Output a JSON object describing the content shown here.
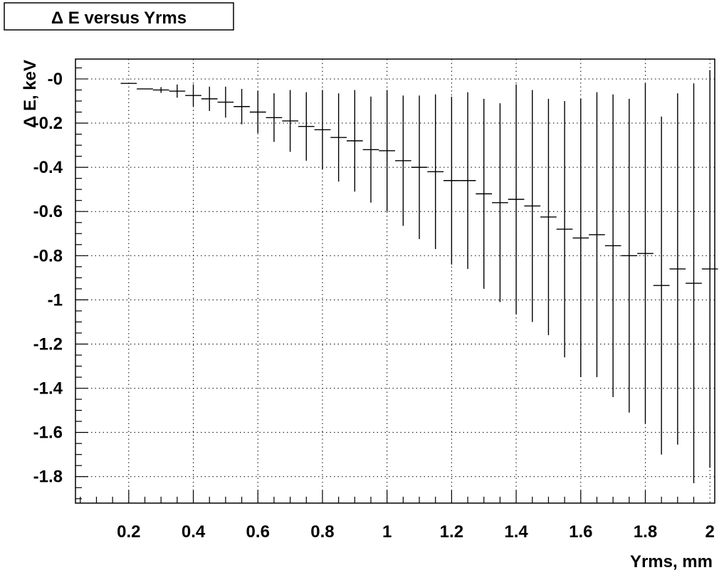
{
  "chart_data": {
    "type": "scatter",
    "title": "Δ E versus Yrms",
    "xlabel": "Yrms, mm",
    "ylabel": "Δ E, keV",
    "xlim": [
      0.035,
      2.015
    ],
    "ylim": [
      -1.92,
      0.09
    ],
    "grid": true,
    "x_ticks": [
      0.2,
      0.4,
      0.6,
      0.8,
      1.0,
      1.2,
      1.4,
      1.6,
      1.8,
      2.0
    ],
    "x_tick_labels": [
      "0.2",
      "0.4",
      "0.6",
      "0.8",
      "1",
      "1.2",
      "1.4",
      "1.6",
      "1.8",
      "2"
    ],
    "y_ticks": [
      0,
      -0.2,
      -0.4,
      -0.6,
      -0.8,
      -1.0,
      -1.2,
      -1.4,
      -1.6,
      -1.8
    ],
    "y_tick_labels": [
      "-0",
      "-0.2",
      "-0.4",
      "-0.6",
      "-0.8",
      "-1",
      "-1.2",
      "-1.4",
      "-1.6",
      "-1.8"
    ],
    "bin_width": 0.05,
    "series": [
      {
        "points": [
          {
            "x": 0.2,
            "y": -0.02,
            "yerr": 0.0
          },
          {
            "x": 0.25,
            "y": -0.045,
            "yerr": 0.0
          },
          {
            "x": 0.3,
            "y": -0.05,
            "yerr": 0.013
          },
          {
            "x": 0.35,
            "y": -0.055,
            "yerr": 0.03
          },
          {
            "x": 0.4,
            "y": -0.075,
            "yerr": 0.05
          },
          {
            "x": 0.45,
            "y": -0.09,
            "yerr": 0.055
          },
          {
            "x": 0.5,
            "y": -0.105,
            "yerr": 0.07
          },
          {
            "x": 0.55,
            "y": -0.125,
            "yerr": 0.08
          },
          {
            "x": 0.6,
            "y": -0.15,
            "yerr": 0.095
          },
          {
            "x": 0.65,
            "y": -0.175,
            "yerr": 0.11
          },
          {
            "x": 0.7,
            "y": -0.19,
            "yerr": 0.14
          },
          {
            "x": 0.75,
            "y": -0.215,
            "yerr": 0.155
          },
          {
            "x": 0.8,
            "y": -0.23,
            "yerr": 0.18
          },
          {
            "x": 0.85,
            "y": -0.265,
            "yerr": 0.2
          },
          {
            "x": 0.9,
            "y": -0.28,
            "yerr": 0.23
          },
          {
            "x": 0.95,
            "y": -0.32,
            "yerr": 0.24
          },
          {
            "x": 1.0,
            "y": -0.325,
            "yerr": 0.275
          },
          {
            "x": 1.05,
            "y": -0.37,
            "yerr": 0.295
          },
          {
            "x": 1.1,
            "y": -0.4,
            "yerr": 0.325
          },
          {
            "x": 1.15,
            "y": -0.42,
            "yerr": 0.35
          },
          {
            "x": 1.2,
            "y": -0.46,
            "yerr": 0.38
          },
          {
            "x": 1.25,
            "y": -0.46,
            "yerr": 0.4
          },
          {
            "x": 1.3,
            "y": -0.52,
            "yerr": 0.43
          },
          {
            "x": 1.35,
            "y": -0.56,
            "yerr": 0.45
          },
          {
            "x": 1.4,
            "y": -0.545,
            "yerr": 0.52
          },
          {
            "x": 1.45,
            "y": -0.575,
            "yerr": 0.525
          },
          {
            "x": 1.5,
            "y": -0.625,
            "yerr": 0.535
          },
          {
            "x": 1.55,
            "y": -0.68,
            "yerr": 0.58
          },
          {
            "x": 1.6,
            "y": -0.72,
            "yerr": 0.63
          },
          {
            "x": 1.65,
            "y": -0.705,
            "yerr": 0.645
          },
          {
            "x": 1.7,
            "y": -0.755,
            "yerr": 0.685
          },
          {
            "x": 1.75,
            "y": -0.8,
            "yerr": 0.71
          },
          {
            "x": 1.8,
            "y": -0.79,
            "yerr": 0.77
          },
          {
            "x": 1.85,
            "y": -0.935,
            "yerr": 0.765
          },
          {
            "x": 1.9,
            "y": -0.86,
            "yerr": 0.795
          },
          {
            "x": 1.95,
            "y": -0.925,
            "yerr": 0.905
          },
          {
            "x": 2.0,
            "y": -0.86,
            "yerr": 0.9
          }
        ]
      }
    ]
  }
}
